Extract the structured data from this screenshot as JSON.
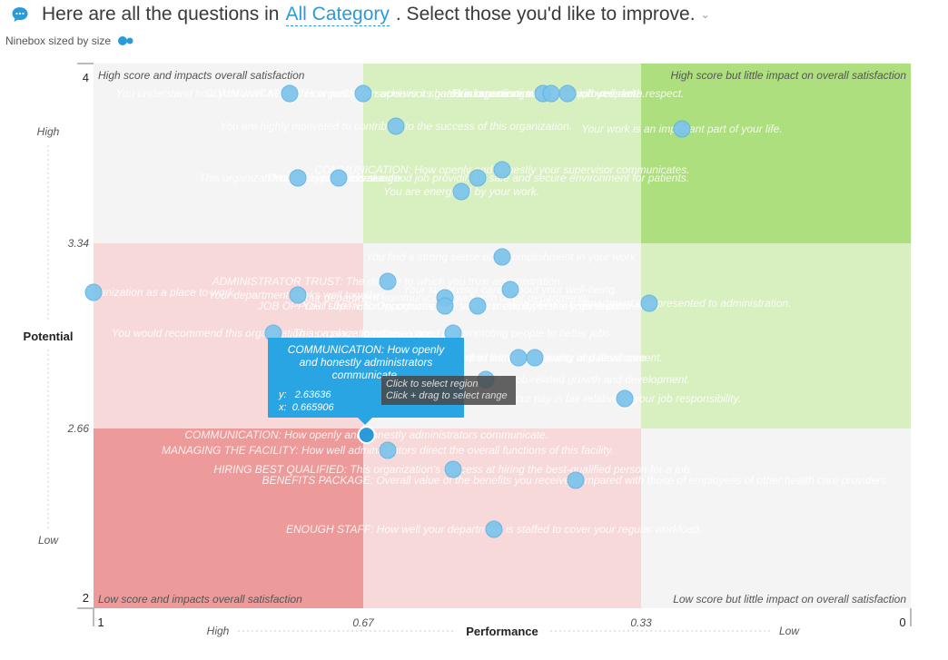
{
  "header": {
    "prefix": "Here are all the questions in",
    "category": "All Category",
    "suffix": ". Select those you'd like to improve."
  },
  "subheader": {
    "label": "Ninebox sized by size"
  },
  "colors": {
    "accent": "#2a9bd8",
    "point": "#7cc4ec",
    "point_stroke": "#5fb2e3",
    "red_strong": "#ec9a9a",
    "red_light": "#f8d9d9",
    "green_strong": "#aedf7f",
    "green_light": "#d8f0c0",
    "neutral": "#f4f4f4"
  },
  "chart_data": {
    "type": "scatter",
    "title": "",
    "xlabel": "Performance",
    "ylabel": "Potential",
    "xlim": [
      1,
      0
    ],
    "ylim": [
      2,
      4
    ],
    "x_split": [
      0.67,
      0.33
    ],
    "y_split": [
      2.66,
      3.34
    ],
    "x_ticks": [
      "1",
      "0.67",
      "0.33",
      "0"
    ],
    "y_ticks": [
      "4",
      "3.34",
      "2.66",
      "2"
    ],
    "x_side_labels": [
      "High",
      "Low"
    ],
    "y_side_labels": [
      "High",
      "Low"
    ],
    "quadrant_labels": {
      "top_left": "High score and impacts overall satisfaction",
      "top_right": "High score but little impact on overall satisfaction",
      "bottom_left": "Low score and impacts overall satisfaction",
      "bottom_right": "Low score but little impact on overall satisfaction"
    },
    "grid_colors": [
      [
        "neutral",
        "green_light",
        "green_strong"
      ],
      [
        "red_light",
        "neutral",
        "green_light"
      ],
      [
        "red_strong",
        "red_light",
        "neutral"
      ]
    ],
    "series": [
      {
        "points": [
          {
            "x": 0.76,
            "y": 3.89,
            "label": "You understand how your work helps this organization achieve its goals."
          },
          {
            "x": 0.67,
            "y": 3.89,
            "label": "COMMUNICATION: How well your supervisor shares information."
          },
          {
            "x": 0.45,
            "y": 3.89,
            "label": "Your supervisor treats you with respect."
          },
          {
            "x": 0.44,
            "y": 3.89,
            "label": "You are recognized for a job well done."
          },
          {
            "x": 0.42,
            "y": 3.89,
            "label": "This organization treats employees with respect."
          },
          {
            "x": 0.63,
            "y": 3.77,
            "label": "You are highly motivated to contribute to the success of this organization."
          },
          {
            "x": 0.28,
            "y": 3.76,
            "label": "Your work is an important part of your life."
          },
          {
            "x": 0.5,
            "y": 3.61,
            "label": "COMMUNICATION: How openly and honestly your supervisor communicates."
          },
          {
            "x": 0.53,
            "y": 3.58,
            "label": "This organization does a good job providing a safe and secure environment for patients."
          },
          {
            "x": 0.75,
            "y": 3.58,
            "label": "This organization makes you feel valued."
          },
          {
            "x": 0.7,
            "y": 3.58,
            "label": "You feel your job is secure."
          },
          {
            "x": 0.55,
            "y": 3.53,
            "label": "You are energized by your work."
          },
          {
            "x": 0.5,
            "y": 3.29,
            "label": "You find a strong sense of accomplishment in your work."
          },
          {
            "x": 0.64,
            "y": 3.2,
            "label": "ADMINISTRATOR TRUST: The degree to which you trust administration."
          },
          {
            "x": 0.49,
            "y": 3.17,
            "label": "Your supervisor cares about your well-being."
          },
          {
            "x": 1.0,
            "y": 3.16,
            "label": "You would recommend this organization as a place to work."
          },
          {
            "x": 0.75,
            "y": 3.15,
            "label": "Your department works well together."
          },
          {
            "x": 0.57,
            "y": 3.14,
            "label": "Your department communicates well with other departments."
          },
          {
            "x": 0.32,
            "y": 3.12,
            "label": "How well your department is represented to administration."
          },
          {
            "x": 0.57,
            "y": 3.11,
            "label": "JOB OPPORTUNITIES: Opportunities for you to move up in this organization."
          },
          {
            "x": 0.53,
            "y": 3.11,
            "label": "Your supervisor recognizes and supports employees in your department."
          },
          {
            "x": 0.78,
            "y": 3.01,
            "label": "You would recommend this organization as a place to receive care."
          },
          {
            "x": 0.56,
            "y": 3.01,
            "label": "This organization does a good job promoting people to better jobs."
          },
          {
            "x": 0.48,
            "y": 2.92,
            "label": "You feel confident in the overall quality of patient care."
          },
          {
            "x": 0.46,
            "y": 2.92,
            "label": "You are satisfied with your training and development."
          },
          {
            "x": 0.52,
            "y": 2.84,
            "label": "This organization provides you opportunities for job-related growth and development."
          },
          {
            "x": 0.35,
            "y": 2.77,
            "label": "Your pay is fair relative to your job responsibility."
          },
          {
            "x": 0.665906,
            "y": 2.63636,
            "label": "COMMUNICATION: How openly and honestly administrators communicate."
          },
          {
            "x": 0.64,
            "y": 2.58,
            "label": "MANAGING THE FACILITY: How well administrators direct the overall functions of this facility."
          },
          {
            "x": 0.56,
            "y": 2.51,
            "label": "HIRING BEST QUALIFIED: This organization's success at hiring the best-qualified person for a job."
          },
          {
            "x": 0.41,
            "y": 2.47,
            "label": "BENEFITS PACKAGE: Overall value of the benefits you receive compared with those of employees of other health care providers."
          },
          {
            "x": 0.51,
            "y": 2.29,
            "label": "ENOUGH STAFF: How well your department is staffed to cover your regular workload."
          }
        ]
      }
    ],
    "tooltip": {
      "title": "COMMUNICATION: How openly and honestly administrators communicate.",
      "y_label": "y:",
      "y_value": "2.63636",
      "x_label": "x:",
      "x_value": "0.665906"
    },
    "select_hint": [
      "Click to select region",
      "Click + drag to select range"
    ]
  }
}
